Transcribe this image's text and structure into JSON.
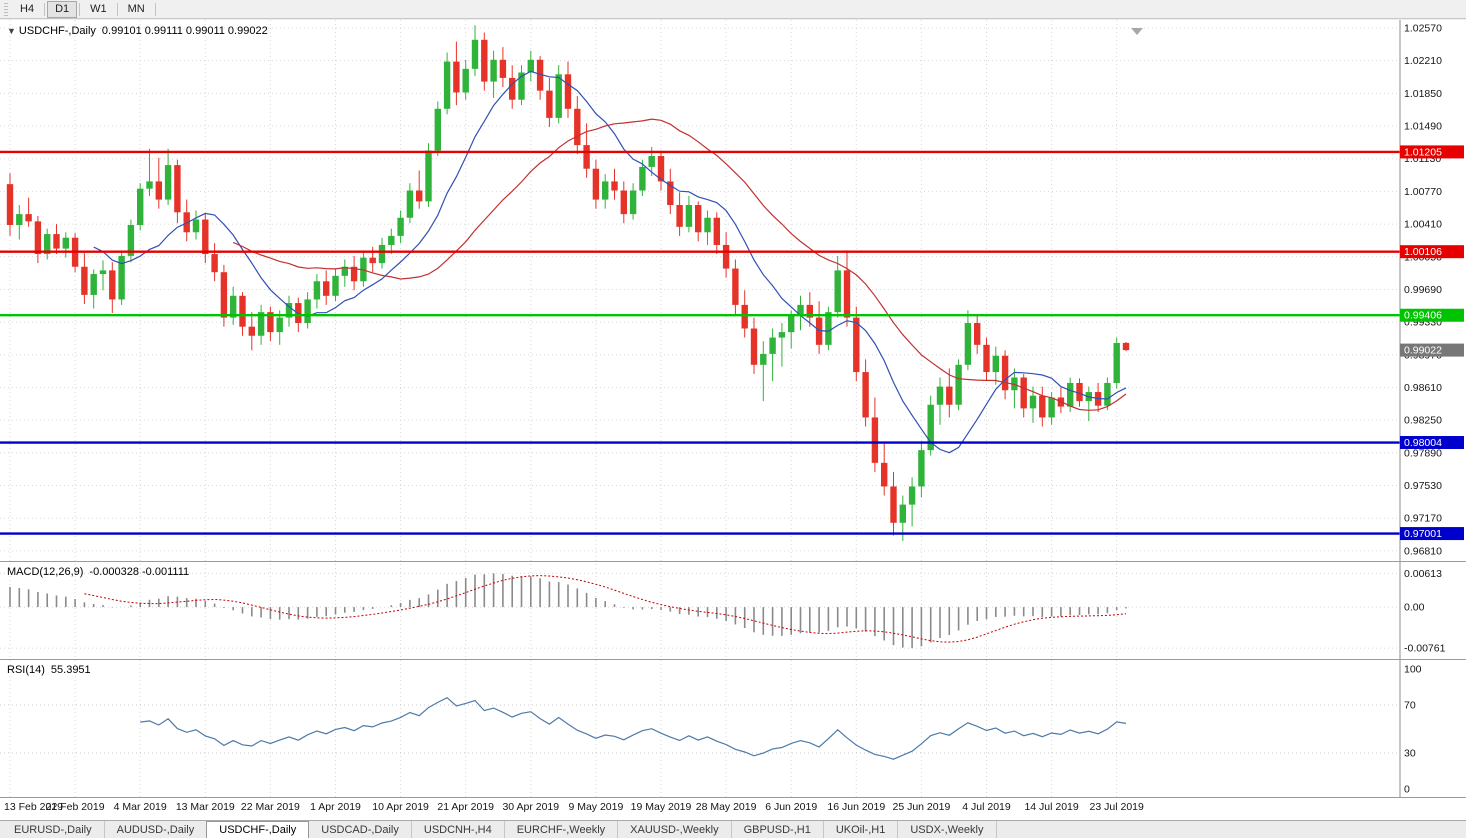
{
  "toolbar": {
    "periods": [
      "H4",
      "D1",
      "W1",
      "MN"
    ],
    "active": "D1"
  },
  "chart_data": {
    "type": "candlestick",
    "title": "USDCHF-,Daily",
    "ohlc_text": "0.99101 0.99111 0.99011 0.99022",
    "price_min": 0.9682,
    "price_max": 1.0257,
    "price_ticks": [
      "1.02570",
      "1.02210",
      "1.01850",
      "1.01490",
      "1.01130",
      "1.00770",
      "1.00410",
      "1.00050",
      "0.99690",
      "0.99330",
      "0.98970",
      "0.98610",
      "0.98250",
      "0.97890",
      "0.97530",
      "0.97170",
      "0.96810"
    ],
    "x_labels": [
      "13 Feb 2019",
      "22 Feb 2019",
      "4 Mar 2019",
      "13 Mar 2019",
      "22 Mar 2019",
      "1 Apr 2019",
      "10 Apr 2019",
      "21 Apr 2019",
      "30 Apr 2019",
      "9 May 2019",
      "19 May 2019",
      "28 May 2019",
      "6 Jun 2019",
      "16 Jun 2019",
      "25 Jun 2019",
      "4 Jul 2019",
      "14 Jul 2019",
      "23 Jul 2019"
    ],
    "x_label_step": 7,
    "candles": [
      [
        1.0085,
        1.0097,
        1.0028,
        1.004
      ],
      [
        1.004,
        1.0062,
        1.0024,
        1.0052
      ],
      [
        1.0052,
        1.007,
        1.0038,
        1.0044
      ],
      [
        1.0044,
        1.005,
        0.9998,
        1.0008
      ],
      [
        1.0008,
        1.0036,
        1.0002,
        1.003
      ],
      [
        1.003,
        1.0041,
        1.0008,
        1.0014
      ],
      [
        1.0014,
        1.0032,
        1.0004,
        1.0026
      ],
      [
        1.0026,
        1.0031,
        0.9988,
        0.9994
      ],
      [
        0.9994,
        1.0009,
        0.9953,
        0.9963
      ],
      [
        0.9963,
        0.9991,
        0.9948,
        0.9986
      ],
      [
        0.9986,
        1.0001,
        0.9968,
        0.999
      ],
      [
        0.999,
        0.9999,
        0.9943,
        0.9958
      ],
      [
        0.9958,
        1.0012,
        0.9952,
        1.0006
      ],
      [
        1.0006,
        1.0046,
        0.9999,
        1.004
      ],
      [
        1.004,
        1.0086,
        1.0034,
        1.008
      ],
      [
        1.008,
        1.0124,
        1.0072,
        1.0088
      ],
      [
        1.0088,
        1.0114,
        1.0058,
        1.0068
      ],
      [
        1.0068,
        1.0124,
        1.0062,
        1.0106
      ],
      [
        1.0106,
        1.0112,
        1.0042,
        1.0054
      ],
      [
        1.0054,
        1.0068,
        1.0022,
        1.0032
      ],
      [
        1.0032,
        1.0056,
        1.0024,
        1.0046
      ],
      [
        1.0046,
        1.0052,
        0.9998,
        1.0008
      ],
      [
        1.0008,
        1.002,
        0.9978,
        0.9988
      ],
      [
        0.9988,
        0.9996,
        0.9928,
        0.9938
      ],
      [
        0.9938,
        0.9972,
        0.993,
        0.9962
      ],
      [
        0.9962,
        0.9966,
        0.9918,
        0.9928
      ],
      [
        0.9928,
        0.9944,
        0.9902,
        0.9918
      ],
      [
        0.9918,
        0.9952,
        0.9908,
        0.9944
      ],
      [
        0.9944,
        0.995,
        0.9912,
        0.9922
      ],
      [
        0.9922,
        0.9946,
        0.9908,
        0.9938
      ],
      [
        0.9938,
        0.9962,
        0.9928,
        0.9954
      ],
      [
        0.9954,
        0.996,
        0.9922,
        0.9932
      ],
      [
        0.9932,
        0.9966,
        0.9926,
        0.9958
      ],
      [
        0.9958,
        0.9986,
        0.9948,
        0.9978
      ],
      [
        0.9978,
        0.999,
        0.9952,
        0.9962
      ],
      [
        0.9962,
        0.9992,
        0.9956,
        0.9984
      ],
      [
        0.9984,
        1.0002,
        0.9972,
        0.9994
      ],
      [
        0.9994,
        1.0006,
        0.9968,
        0.9978
      ],
      [
        0.9978,
        1.0012,
        0.9972,
        1.0004
      ],
      [
        1.0004,
        1.0016,
        0.9988,
        0.9998
      ],
      [
        0.9998,
        1.0026,
        0.9992,
        1.0018
      ],
      [
        1.0018,
        1.0036,
        1.0008,
        1.0028
      ],
      [
        1.0028,
        1.0056,
        1.002,
        1.0048
      ],
      [
        1.0048,
        1.0086,
        1.0042,
        1.0078
      ],
      [
        1.0078,
        1.01,
        1.0058,
        1.0066
      ],
      [
        1.0066,
        1.013,
        1.006,
        1.0122
      ],
      [
        1.0122,
        1.0176,
        1.0116,
        1.0168
      ],
      [
        1.0168,
        1.023,
        1.0162,
        1.022
      ],
      [
        1.022,
        1.0242,
        1.0172,
        1.0186
      ],
      [
        1.0186,
        1.0222,
        1.0178,
        1.0212
      ],
      [
        1.0212,
        1.026,
        1.0204,
        1.0244
      ],
      [
        1.0244,
        1.0252,
        1.0188,
        1.0198
      ],
      [
        1.0198,
        1.0232,
        1.018,
        1.0222
      ],
      [
        1.0222,
        1.0236,
        1.0192,
        1.0202
      ],
      [
        1.0202,
        1.0216,
        1.0168,
        1.0178
      ],
      [
        1.0178,
        1.0216,
        1.0172,
        1.0208
      ],
      [
        1.0208,
        1.0232,
        1.0198,
        1.0222
      ],
      [
        1.0222,
        1.0226,
        1.0178,
        1.0188
      ],
      [
        1.0188,
        1.0202,
        1.0148,
        1.0158
      ],
      [
        1.0158,
        1.0216,
        1.0152,
        1.0206
      ],
      [
        1.0206,
        1.022,
        1.0158,
        1.0168
      ],
      [
        1.0168,
        1.0182,
        1.0118,
        1.0128
      ],
      [
        1.0128,
        1.0152,
        1.0092,
        1.0102
      ],
      [
        1.0102,
        1.0112,
        1.0058,
        1.0068
      ],
      [
        1.0068,
        1.0096,
        1.0058,
        1.0088
      ],
      [
        1.0088,
        1.0102,
        1.0068,
        1.0078
      ],
      [
        1.0078,
        1.0088,
        1.0042,
        1.0052
      ],
      [
        1.0052,
        1.0086,
        1.0046,
        1.0078
      ],
      [
        1.0078,
        1.0112,
        1.0072,
        1.0104
      ],
      [
        1.0104,
        1.0126,
        1.0094,
        1.0116
      ],
      [
        1.0116,
        1.0122,
        1.0078,
        1.0088
      ],
      [
        1.0088,
        1.0102,
        1.0052,
        1.0062
      ],
      [
        1.0062,
        1.0076,
        1.0028,
        1.0038
      ],
      [
        1.0038,
        1.0072,
        1.0032,
        1.0062
      ],
      [
        1.0062,
        1.0066,
        1.0022,
        1.0032
      ],
      [
        1.0032,
        1.0056,
        1.0018,
        1.0048
      ],
      [
        1.0048,
        1.0054,
        1.0008,
        1.0018
      ],
      [
        1.0018,
        1.0032,
        0.9982,
        0.9992
      ],
      [
        0.9992,
        1.0002,
        0.9942,
        0.9952
      ],
      [
        0.9952,
        0.9968,
        0.9916,
        0.9926
      ],
      [
        0.9926,
        0.9938,
        0.9876,
        0.9886
      ],
      [
        0.9886,
        0.9912,
        0.9846,
        0.9898
      ],
      [
        0.9898,
        0.9926,
        0.9868,
        0.9916
      ],
      [
        0.9916,
        0.9932,
        0.9884,
        0.9922
      ],
      [
        0.9922,
        0.9946,
        0.9904,
        0.994
      ],
      [
        0.994,
        0.9962,
        0.9924,
        0.9952
      ],
      [
        0.9952,
        0.9966,
        0.9928,
        0.9938
      ],
      [
        0.9938,
        0.9956,
        0.9898,
        0.9908
      ],
      [
        0.9908,
        0.995,
        0.9902,
        0.9944
      ],
      [
        0.9944,
        1.0006,
        0.9938,
        0.999
      ],
      [
        0.999,
        1.0012,
        0.9928,
        0.9938
      ],
      [
        0.9938,
        0.995,
        0.9868,
        0.9878
      ],
      [
        0.9878,
        0.9892,
        0.9818,
        0.9828
      ],
      [
        0.9828,
        0.985,
        0.9768,
        0.9778
      ],
      [
        0.9778,
        0.98,
        0.9742,
        0.9752
      ],
      [
        0.9752,
        0.9768,
        0.9698,
        0.9712
      ],
      [
        0.9712,
        0.9742,
        0.9692,
        0.9732
      ],
      [
        0.9732,
        0.9762,
        0.9708,
        0.9752
      ],
      [
        0.9752,
        0.9802,
        0.974,
        0.9792
      ],
      [
        0.9792,
        0.9852,
        0.9786,
        0.9842
      ],
      [
        0.9842,
        0.9872,
        0.982,
        0.9862
      ],
      [
        0.9862,
        0.9882,
        0.9828,
        0.9842
      ],
      [
        0.9842,
        0.9892,
        0.9836,
        0.9886
      ],
      [
        0.9886,
        0.9946,
        0.988,
        0.9932
      ],
      [
        0.9932,
        0.9942,
        0.9898,
        0.9908
      ],
      [
        0.9908,
        0.9916,
        0.9868,
        0.9878
      ],
      [
        0.9878,
        0.9906,
        0.9864,
        0.9896
      ],
      [
        0.9896,
        0.9902,
        0.9848,
        0.9858
      ],
      [
        0.9858,
        0.9882,
        0.9838,
        0.9872
      ],
      [
        0.9872,
        0.9876,
        0.9828,
        0.9838
      ],
      [
        0.9838,
        0.9862,
        0.9822,
        0.9852
      ],
      [
        0.9852,
        0.9862,
        0.9818,
        0.9828
      ],
      [
        0.9828,
        0.9856,
        0.982,
        0.985
      ],
      [
        0.985,
        0.9861,
        0.9833,
        0.984
      ],
      [
        0.984,
        0.9872,
        0.9834,
        0.9866
      ],
      [
        0.9866,
        0.9871,
        0.984,
        0.9846
      ],
      [
        0.9846,
        0.9862,
        0.9824,
        0.9856
      ],
      [
        0.9856,
        0.9866,
        0.9834,
        0.9841
      ],
      [
        0.9841,
        0.9872,
        0.9836,
        0.9866
      ],
      [
        0.9866,
        0.9916,
        0.986,
        0.991
      ],
      [
        0.99101,
        0.99111,
        0.99011,
        0.99022
      ]
    ],
    "hlines": [
      {
        "label": "1.01205",
        "value": 1.01205,
        "color": "#e60000"
      },
      {
        "label": "1.00106",
        "value": 1.00106,
        "color": "#e60000"
      },
      {
        "label": "0.99406",
        "value": 0.99406,
        "color": "#00c400"
      },
      {
        "label": "0.98004",
        "value": 0.98004,
        "color": "#0000cc"
      },
      {
        "label": "0.97001",
        "value": 0.97001,
        "color": "#0000cc"
      }
    ],
    "current_price": {
      "label": "0.99022",
      "value": 0.99022,
      "color": "#777777"
    },
    "moving_averages": [
      {
        "period": 10,
        "color": "#3050b4"
      },
      {
        "period": 25,
        "color": "#c23030"
      }
    ],
    "colors": {
      "up": "#2fb33a",
      "down": "#e63329",
      "grid": "#d8d8d8",
      "background": "#ffffff"
    }
  },
  "macd_panel": {
    "label": "MACD(12,26,9)",
    "values_text": "-0.000328 -0.001111",
    "value_main": -0.000328,
    "value_signal": -0.001111,
    "fast": 12,
    "slow": 26,
    "signal": 9,
    "axis_top": "0.00613",
    "axis_zero": "0.00",
    "axis_bottom": "-0.00761",
    "histogram_color": "#8a8a8a",
    "signal_color": "#c00000"
  },
  "rsi_panel": {
    "label": "RSI(14)",
    "value": "55.3951",
    "period": 14,
    "axis_labels": [
      "100",
      "70",
      "30",
      "0"
    ],
    "levels": [
      70,
      30
    ],
    "line_color": "#4d7aa8"
  },
  "bottom_tabs": {
    "active_index": 2,
    "items": [
      "EURUSD-,Daily",
      "AUDUSD-,Daily",
      "USDCHF-,Daily",
      "USDCAD-,Daily",
      "USDCNH-,H4",
      "EURCHF-,Weekly",
      "XAUUSD-,Weekly",
      "GBPUSD-,H1",
      "UKOil-,H1",
      "USDX-,Weekly"
    ]
  }
}
